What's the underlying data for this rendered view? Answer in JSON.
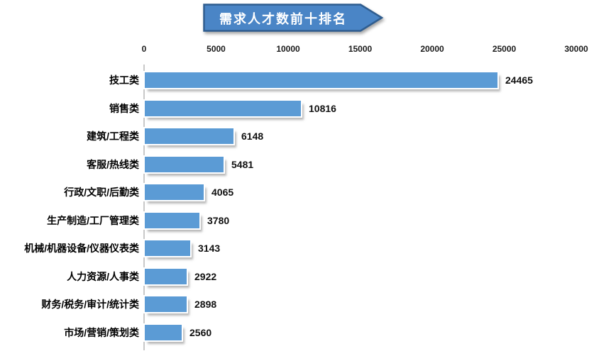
{
  "title": {
    "text": "需求人才数前十排名"
  },
  "colors": {
    "bar": "#5B9BD5",
    "banner_fill": "#4A85C6",
    "banner_border": "#2F5D8F",
    "axis_line": "#C8C8C8",
    "title_text": "#FFFFFF"
  },
  "chart_data": {
    "type": "bar",
    "orientation": "horizontal",
    "title": "需求人才数前十排名",
    "categories": [
      "技工类",
      "销售类",
      "建筑/工程类",
      "客服/热线类",
      "行政/文职/后勤类",
      "生产制造/工厂管理类",
      "机械/机器设备/仪器仪表类",
      "人力资源/人事类",
      "财务/税务/审计/统计类",
      "市场/营销/策划类"
    ],
    "values": [
      24465,
      10816,
      6148,
      5481,
      4065,
      3780,
      3143,
      2922,
      2898,
      2560
    ],
    "value_labels": [
      "24465",
      "10816",
      "6148",
      "5481",
      "4065",
      "3780",
      "3143",
      "2922",
      "2898",
      "2560"
    ],
    "xlim": [
      0,
      30000
    ],
    "x_ticks": [
      0,
      5000,
      10000,
      15000,
      20000,
      25000,
      30000
    ],
    "x_tick_labels": [
      "0",
      "5000",
      "10000",
      "15000",
      "20000",
      "25000",
      "30000"
    ],
    "xlabel": "",
    "ylabel": "",
    "legend": false,
    "grid": false
  }
}
